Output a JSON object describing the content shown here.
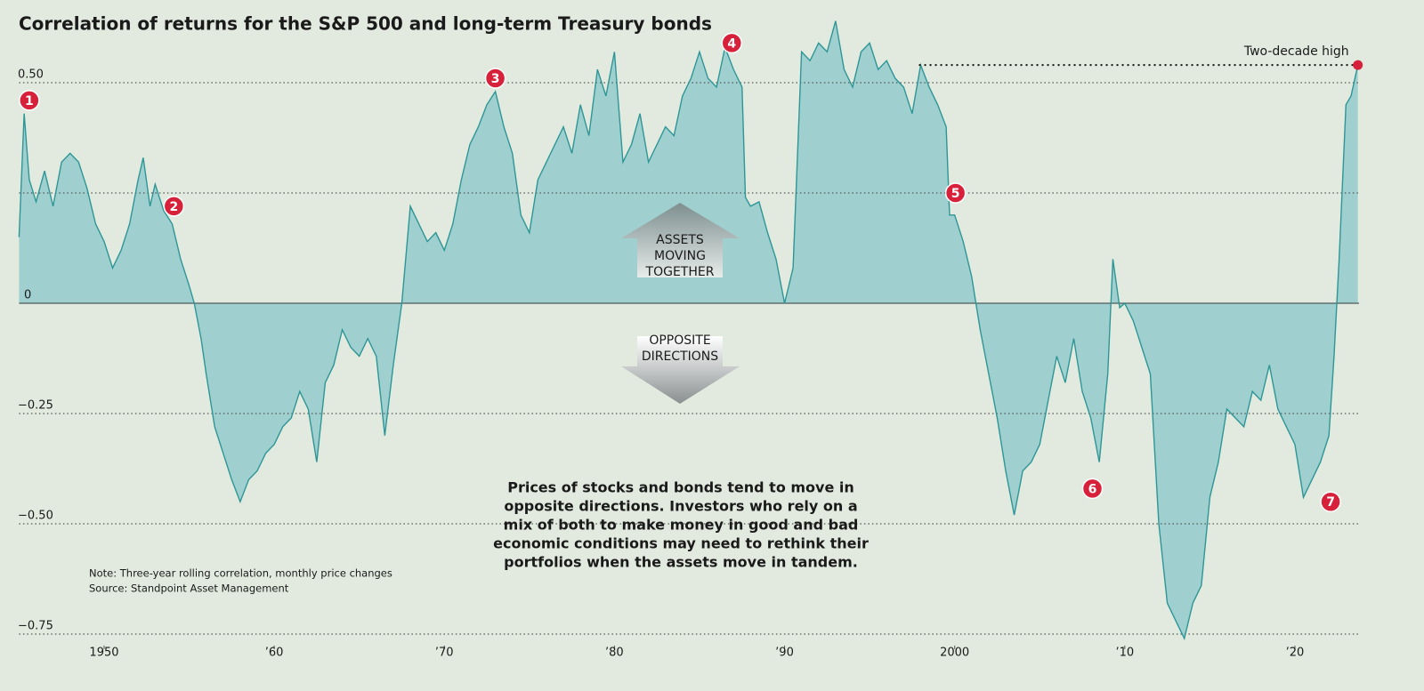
{
  "chart_data": {
    "type": "area",
    "title": "Correlation of returns for the S&P 500 and long-term Treasury bonds",
    "x": [
      1945.0,
      1945.3,
      1945.6,
      1946.0,
      1946.5,
      1947.0,
      1947.5,
      1948.0,
      1948.5,
      1949.0,
      1949.5,
      1950.0,
      1950.5,
      1951.0,
      1951.5,
      1952.0,
      1952.3,
      1952.7,
      1953.0,
      1953.5,
      1954.0,
      1954.5,
      1955.0,
      1955.3,
      1955.7,
      1956.0,
      1956.5,
      1957.0,
      1957.5,
      1958.0,
      1958.5,
      1959.0,
      1959.5,
      1960.0,
      1960.5,
      1961.0,
      1961.5,
      1962.0,
      1962.5,
      1963.0,
      1963.5,
      1964.0,
      1964.5,
      1965.0,
      1965.5,
      1966.0,
      1966.5,
      1967.0,
      1967.5,
      1968.0,
      1968.5,
      1969.0,
      1969.5,
      1970.0,
      1970.5,
      1971.0,
      1971.5,
      1972.0,
      1972.5,
      1973.0,
      1973.5,
      1974.0,
      1974.5,
      1975.0,
      1975.5,
      1976.0,
      1976.5,
      1977.0,
      1977.5,
      1978.0,
      1978.5,
      1979.0,
      1979.5,
      1980.0,
      1980.5,
      1981.0,
      1981.5,
      1982.0,
      1982.5,
      1983.0,
      1983.5,
      1984.0,
      1984.5,
      1985.0,
      1985.5,
      1986.0,
      1986.5,
      1987.0,
      1987.5,
      1987.7,
      1988.0,
      1988.5,
      1989.0,
      1989.5,
      1990.0,
      1990.5,
      1991.0,
      1991.5,
      1992.0,
      1992.5,
      1993.0,
      1993.5,
      1994.0,
      1994.5,
      1995.0,
      1995.5,
      1996.0,
      1996.5,
      1997.0,
      1997.5,
      1998.0,
      1998.5,
      1999.0,
      1999.5,
      1999.7,
      2000.0,
      2000.5,
      2001.0,
      2001.5,
      2002.0,
      2002.5,
      2003.0,
      2003.5,
      2004.0,
      2004.5,
      2005.0,
      2005.5,
      2006.0,
      2006.5,
      2007.0,
      2007.5,
      2008.0,
      2008.5,
      2009.0,
      2009.3,
      2009.7,
      2010.0,
      2010.5,
      2011.0,
      2011.5,
      2012.0,
      2012.5,
      2013.0,
      2013.5,
      2014.0,
      2014.5,
      2015.0,
      2015.5,
      2016.0,
      2016.5,
      2017.0,
      2017.5,
      2018.0,
      2018.5,
      2019.0,
      2019.5,
      2020.0,
      2020.5,
      2021.0,
      2021.5,
      2022.0,
      2022.3,
      2022.6,
      2023.0,
      2023.3,
      2023.7
    ],
    "values": [
      0.15,
      0.43,
      0.28,
      0.23,
      0.3,
      0.22,
      0.32,
      0.34,
      0.32,
      0.26,
      0.18,
      0.14,
      0.08,
      0.12,
      0.18,
      0.28,
      0.33,
      0.22,
      0.27,
      0.21,
      0.18,
      0.1,
      0.04,
      0.0,
      -0.08,
      -0.16,
      -0.28,
      -0.34,
      -0.4,
      -0.45,
      -0.4,
      -0.38,
      -0.34,
      -0.32,
      -0.28,
      -0.26,
      -0.2,
      -0.24,
      -0.36,
      -0.18,
      -0.14,
      -0.06,
      -0.1,
      -0.12,
      -0.08,
      -0.12,
      -0.3,
      -0.14,
      0.0,
      0.22,
      0.18,
      0.14,
      0.16,
      0.12,
      0.18,
      0.28,
      0.36,
      0.4,
      0.45,
      0.48,
      0.4,
      0.34,
      0.2,
      0.16,
      0.28,
      0.32,
      0.36,
      0.4,
      0.34,
      0.45,
      0.38,
      0.53,
      0.47,
      0.57,
      0.32,
      0.36,
      0.43,
      0.32,
      0.36,
      0.4,
      0.38,
      0.47,
      0.51,
      0.57,
      0.51,
      0.49,
      0.58,
      0.53,
      0.49,
      0.24,
      0.22,
      0.23,
      0.16,
      0.1,
      0.0,
      0.08,
      0.57,
      0.55,
      0.59,
      0.57,
      0.64,
      0.53,
      0.49,
      0.57,
      0.59,
      0.53,
      0.55,
      0.51,
      0.49,
      0.43,
      0.54,
      0.49,
      0.45,
      0.4,
      0.2,
      0.2,
      0.14,
      0.06,
      -0.06,
      -0.16,
      -0.26,
      -0.38,
      -0.48,
      -0.38,
      -0.36,
      -0.32,
      -0.22,
      -0.12,
      -0.18,
      -0.08,
      -0.2,
      -0.26,
      -0.36,
      -0.16,
      0.1,
      -0.01,
      0.0,
      -0.04,
      -0.1,
      -0.16,
      -0.5,
      -0.68,
      -0.72,
      -0.76,
      -0.68,
      -0.64,
      -0.44,
      -0.36,
      -0.24,
      -0.26,
      -0.28,
      -0.2,
      -0.22,
      -0.14,
      -0.24,
      -0.28,
      -0.32,
      -0.44,
      -0.4,
      -0.36,
      -0.3,
      -0.12,
      0.1,
      0.45,
      0.47,
      0.54
    ],
    "line_color": "#2e9696",
    "fill_color": "#9fcfcf",
    "xlim": [
      1945,
      2024
    ],
    "ylim": [
      -0.78,
      0.65
    ],
    "xticks": [
      1950,
      {
        "value": 1960,
        "label": "’60"
      },
      {
        "value": 1970,
        "label": "’70"
      },
      {
        "value": 1980,
        "label": "’80"
      },
      {
        "value": 1990,
        "label": "’90"
      },
      2000,
      {
        "value": 2010,
        "label": "’10"
      },
      {
        "value": 2020,
        "label": "’20"
      }
    ],
    "yticks": [
      {
        "value": -0.75,
        "label": "−0.75"
      },
      {
        "value": -0.5,
        "label": "−0.50"
      },
      {
        "value": -0.25,
        "label": "−0.25"
      },
      0,
      {
        "value": 0.25
      },
      {
        "value": 0.5,
        "label": "0.50"
      }
    ],
    "grid": true,
    "markers": [
      {
        "label": "1",
        "x": 1945.6,
        "y": 0.46
      },
      {
        "label": "2",
        "x": 1954.1,
        "y": 0.22
      },
      {
        "label": "3",
        "x": 1973.0,
        "y": 0.51
      },
      {
        "label": "4",
        "x": 1986.9,
        "y": 0.59
      },
      {
        "label": "5",
        "x": 2000.05,
        "y": 0.25
      },
      {
        "label": "6",
        "x": 2008.1,
        "y": -0.42
      },
      {
        "label": "7",
        "x": 2022.1,
        "y": -0.45
      }
    ],
    "marker_color": "#d7213a",
    "highlight": {
      "label": "Two-decade high",
      "x_start": 1997.9,
      "x": 2023.7,
      "y": 0.54
    },
    "up_arrow": [
      "ASSETS",
      "MOVING",
      "TOGETHER"
    ],
    "down_arrow": [
      "OPPOSITE",
      "DIRECTIONS"
    ],
    "description": [
      "Prices of stocks and bonds tend to move in",
      "opposite directions. Investors who rely on a",
      "mix of both to make money in good and bad",
      "economic conditions may need to rethink their",
      "portfolios when the assets move in tandem."
    ],
    "note": "Note: Three-year rolling correlation, monthly price changes",
    "source": "Source: Standpoint Asset Management"
  }
}
